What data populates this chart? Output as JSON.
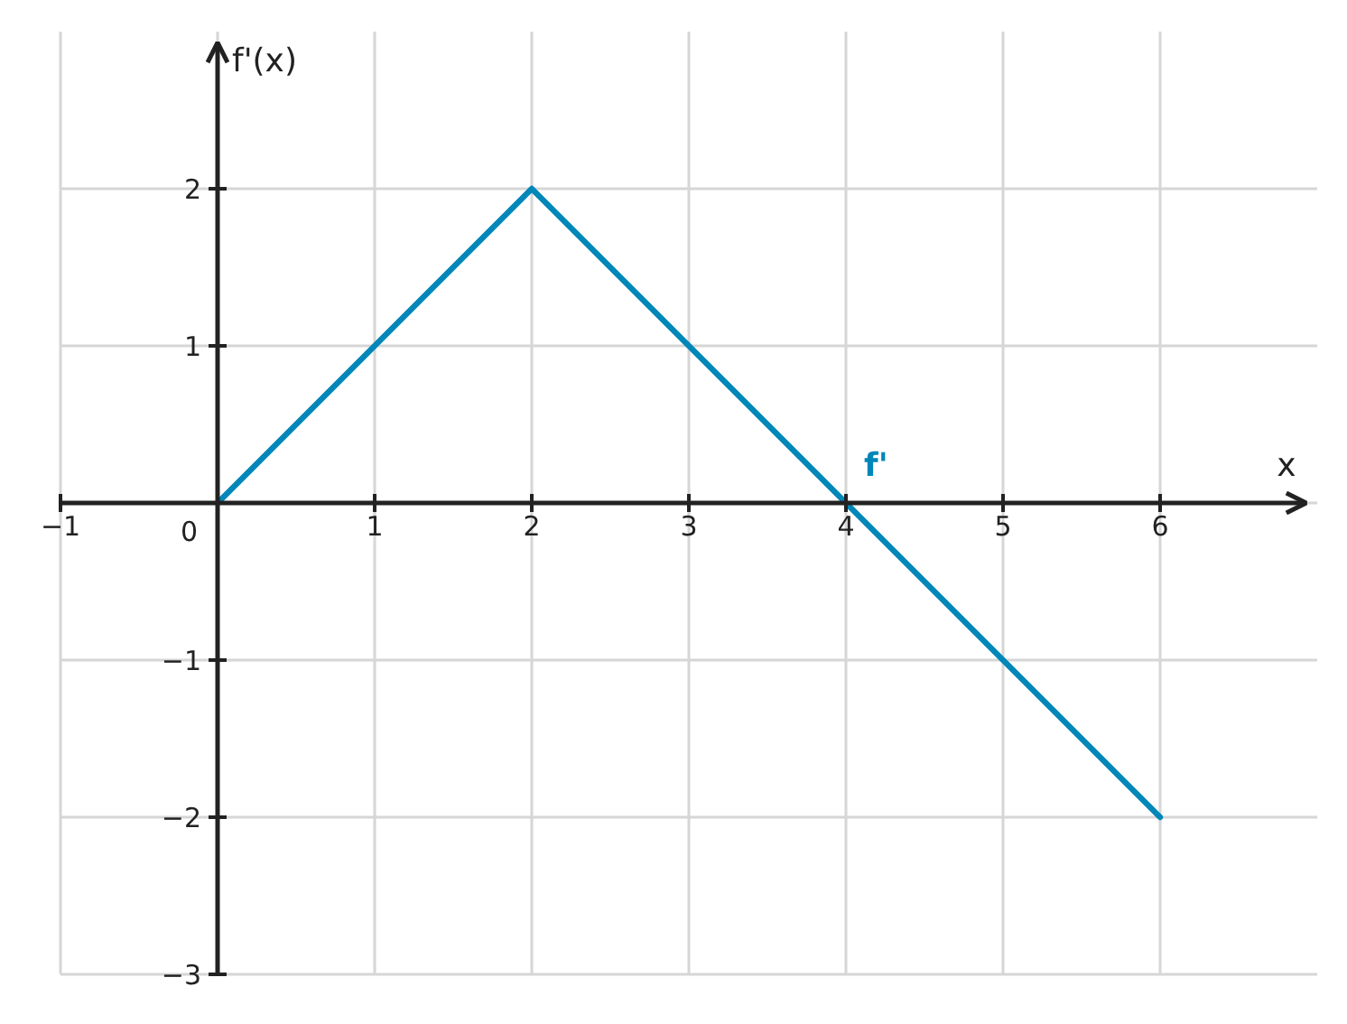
{
  "chart_data": {
    "type": "line",
    "xlabel": "x",
    "ylabel": "f'(x)",
    "x": [
      0,
      2,
      6
    ],
    "series": [
      {
        "name": "f'",
        "color": "#0087b9",
        "values": [
          0,
          2,
          -2
        ]
      }
    ],
    "xlim": [
      -1,
      7
    ],
    "ylim": [
      -3,
      3
    ],
    "xticks": [
      -1,
      0,
      1,
      2,
      3,
      4,
      5,
      6
    ],
    "yticks": [
      -3,
      -2,
      -1,
      {
        "value": 0,
        "label": null
      },
      1,
      2
    ],
    "grid": true
  }
}
